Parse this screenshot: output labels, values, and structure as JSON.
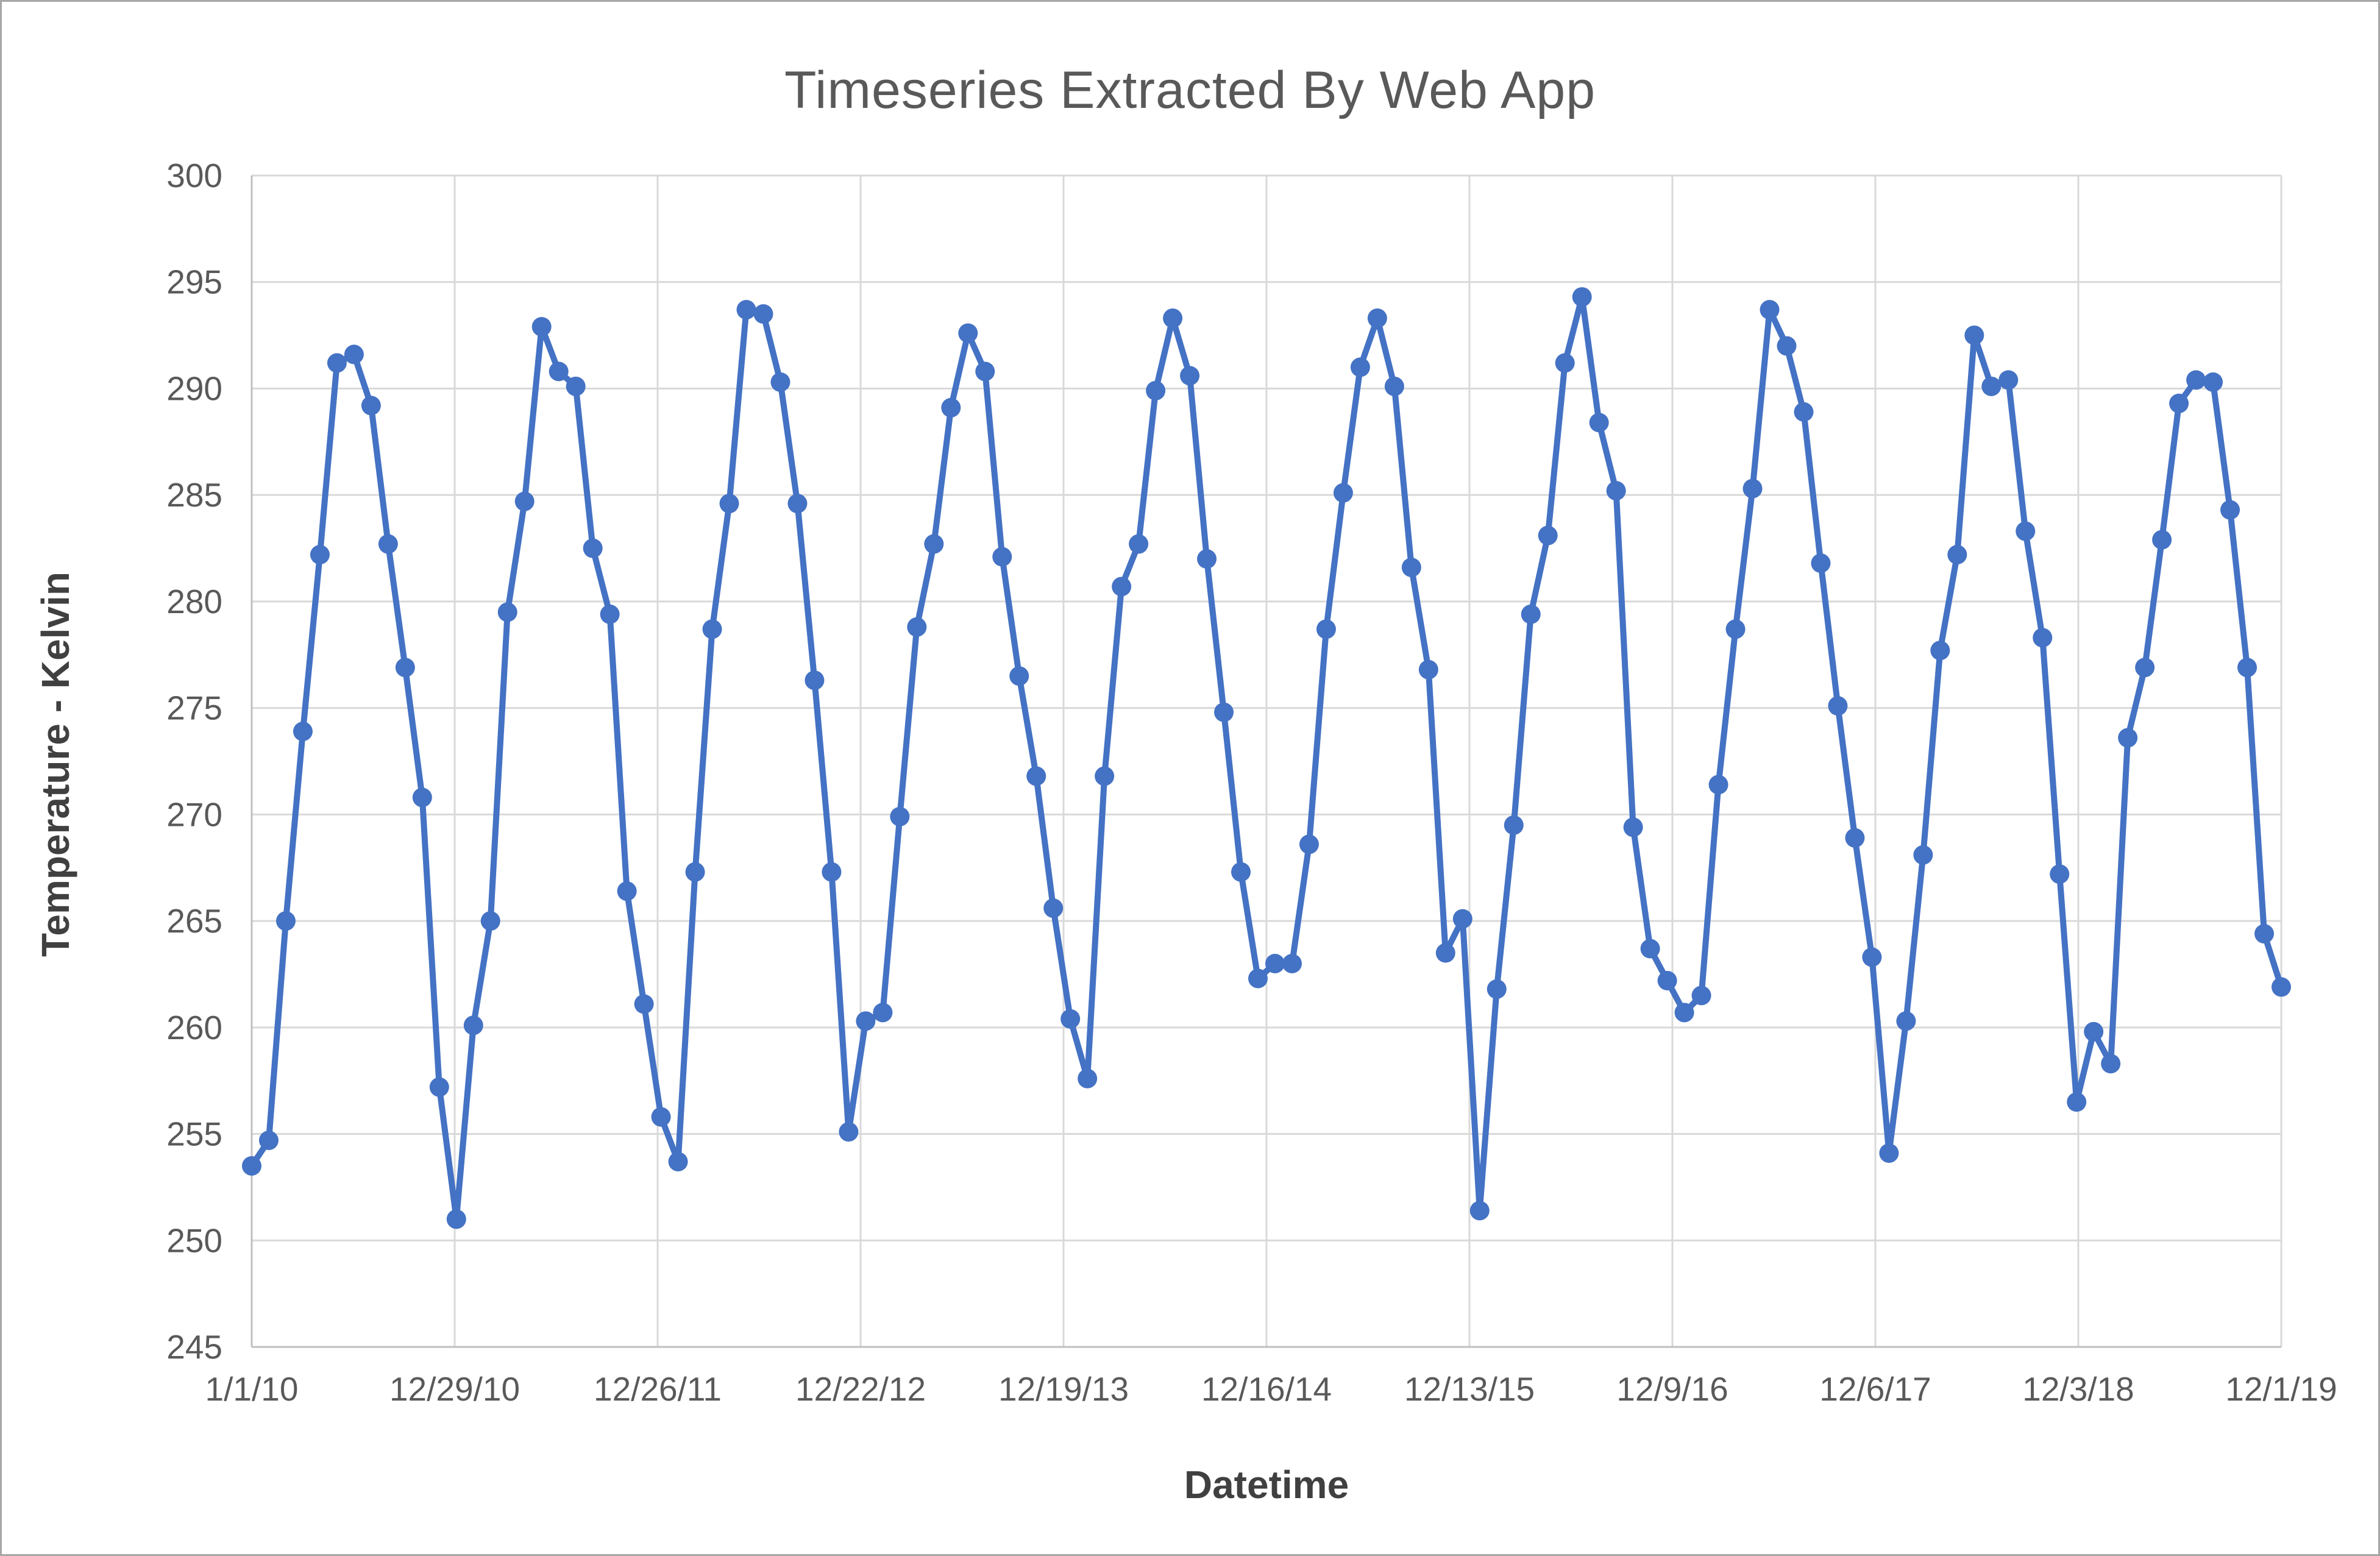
{
  "chart_data": {
    "type": "line",
    "title": "Timeseries Extracted By Web App",
    "xlabel": "Datetime",
    "ylabel": "Temperature - Kelvin",
    "ylim": [
      245,
      300
    ],
    "ytick_step": 5,
    "grid": true,
    "legend": false,
    "marker": "circle",
    "x_tick_labels": [
      "1/1/10",
      "12/29/10",
      "12/26/11",
      "12/22/12",
      "12/19/13",
      "12/16/14",
      "12/13/15",
      "12/9/16",
      "12/6/17",
      "12/3/18",
      "12/1/19"
    ],
    "series_note": "single series of monthly temperature samples, first point at 1/1/10, last point at 12/1/19",
    "values": [
      253.5,
      254.7,
      265.0,
      273.9,
      282.2,
      291.2,
      291.6,
      289.2,
      282.7,
      276.9,
      270.8,
      257.2,
      251.0,
      260.1,
      265.0,
      279.5,
      284.7,
      292.9,
      290.8,
      290.1,
      282.5,
      279.4,
      266.4,
      261.1,
      255.8,
      253.7,
      267.3,
      278.7,
      284.6,
      293.7,
      293.5,
      290.3,
      284.6,
      276.3,
      267.3,
      255.1,
      260.3,
      260.7,
      269.9,
      278.8,
      282.7,
      289.1,
      292.6,
      290.8,
      282.1,
      276.5,
      271.8,
      265.6,
      260.4,
      257.6,
      271.8,
      280.7,
      282.7,
      289.9,
      293.3,
      290.6,
      282.0,
      274.8,
      267.3,
      262.3,
      263.0,
      263.0,
      268.6,
      278.7,
      285.1,
      291.0,
      293.3,
      290.1,
      281.6,
      276.8,
      263.5,
      265.1,
      251.4,
      261.8,
      269.5,
      279.4,
      283.1,
      291.2,
      294.3,
      288.4,
      285.2,
      269.4,
      263.7,
      262.2,
      260.7,
      261.5,
      271.4,
      278.7,
      285.3,
      293.7,
      292.0,
      288.9,
      281.8,
      275.1,
      268.9,
      263.3,
      254.1,
      260.3,
      268.1,
      277.7,
      282.2,
      292.5,
      290.1,
      290.4,
      283.3,
      278.3,
      267.2,
      256.5,
      259.8,
      258.3,
      273.6,
      276.9,
      282.9,
      289.3,
      290.4,
      290.3,
      284.3,
      276.9,
      264.4,
      261.9
    ],
    "colors": {
      "line": "#4472C4",
      "marker": "#4472C4",
      "gridline": "#d9d9d9",
      "axis_line": "#bfbfbf",
      "tick_text": "#595959",
      "title_text": "#595959",
      "axis_title_text": "#404040",
      "border": "#a6a6a6"
    }
  }
}
